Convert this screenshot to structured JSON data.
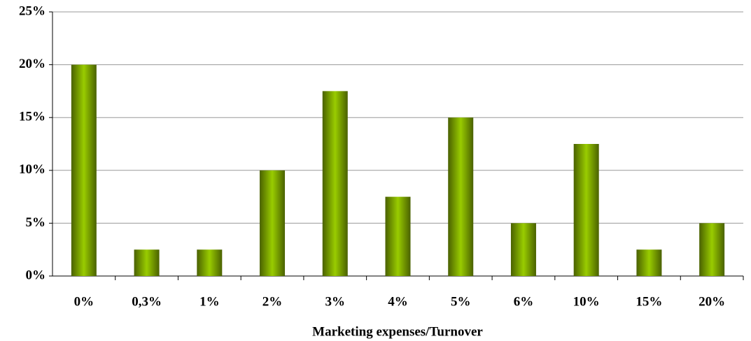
{
  "chart_data": {
    "type": "bar",
    "x_label": "Marketing expenses/Turnover",
    "categories": [
      "0%",
      "0,3%",
      "1%",
      "2%",
      "3%",
      "4%",
      "5%",
      "6%",
      "10%",
      "15%",
      "20%"
    ],
    "values": [
      20,
      2.5,
      2.5,
      10,
      17.5,
      7.5,
      15,
      5,
      12.5,
      2.5,
      5
    ],
    "color": "#99cc00",
    "ylim": [
      0,
      25
    ],
    "yticks": [
      {
        "value": 0,
        "label": "0%"
      },
      {
        "value": 5,
        "label": "5%"
      },
      {
        "value": 10,
        "label": "10%"
      },
      {
        "value": 15,
        "label": "15%"
      },
      {
        "value": 20,
        "label": "20%"
      },
      {
        "value": 25,
        "label": "25%"
      }
    ],
    "grid": true
  }
}
